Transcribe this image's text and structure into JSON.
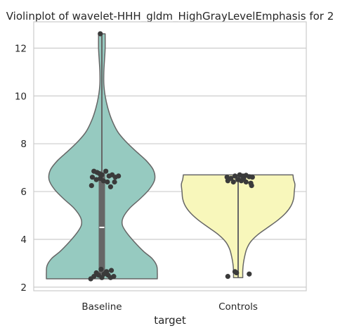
{
  "chart_data": {
    "type": "violin",
    "title": "Violinplot of wavelet-HHH_gldm_HighGrayLevelEmphasis for 2",
    "xlabel": "target",
    "ylabel": "",
    "categories": [
      "Baseline",
      "Controls"
    ],
    "ylim": [
      1.85,
      13.1
    ],
    "yticks": [
      2,
      4,
      6,
      8,
      10,
      12
    ],
    "grid": true,
    "colors": {
      "Baseline": "#96cac0",
      "Controls": "#f8f7bb",
      "points": "#3a3a3a",
      "outline": "#666666",
      "grid": "#cccccc"
    },
    "violins": [
      {
        "category": "Baseline",
        "min": 2.35,
        "max": 12.6,
        "median": 4.5,
        "q1": 2.55,
        "q3": 6.8,
        "density": [
          [
            2.35,
            0.84
          ],
          [
            2.6,
            0.84
          ],
          [
            2.9,
            0.83
          ],
          [
            3.2,
            0.76
          ],
          [
            3.5,
            0.63
          ],
          [
            3.9,
            0.49
          ],
          [
            4.3,
            0.37
          ],
          [
            4.6,
            0.31
          ],
          [
            4.9,
            0.32
          ],
          [
            5.3,
            0.42
          ],
          [
            5.7,
            0.58
          ],
          [
            6.1,
            0.72
          ],
          [
            6.5,
            0.8
          ],
          [
            6.9,
            0.78
          ],
          [
            7.3,
            0.67
          ],
          [
            7.7,
            0.51
          ],
          [
            8.1,
            0.36
          ],
          [
            8.5,
            0.24
          ],
          [
            9.0,
            0.15
          ],
          [
            9.5,
            0.09
          ],
          [
            10.0,
            0.05
          ],
          [
            10.5,
            0.03
          ],
          [
            11.0,
            0.03
          ],
          [
            11.5,
            0.04
          ],
          [
            12.0,
            0.05
          ],
          [
            12.6,
            0.05
          ]
        ],
        "points": [
          [
            -0.02,
            12.6
          ],
          [
            -0.1,
            6.85
          ],
          [
            -0.06,
            6.8
          ],
          [
            -0.03,
            6.75
          ],
          [
            0.0,
            6.7
          ],
          [
            0.05,
            6.85
          ],
          [
            0.09,
            6.65
          ],
          [
            0.13,
            6.7
          ],
          [
            0.17,
            6.6
          ],
          [
            0.21,
            6.65
          ],
          [
            -0.12,
            6.6
          ],
          [
            -0.07,
            6.5
          ],
          [
            0.02,
            6.45
          ],
          [
            0.07,
            6.4
          ],
          [
            -0.13,
            6.25
          ],
          [
            0.16,
            6.4
          ],
          [
            0.11,
            6.2
          ],
          [
            -0.02,
            6.55
          ],
          [
            -0.01,
            2.75
          ],
          [
            0.06,
            2.65
          ],
          [
            0.12,
            2.7
          ],
          [
            -0.07,
            2.6
          ],
          [
            0.03,
            2.55
          ],
          [
            0.08,
            2.5
          ],
          [
            -0.1,
            2.45
          ],
          [
            -0.04,
            2.5
          ],
          [
            0.0,
            2.4
          ],
          [
            0.15,
            2.45
          ],
          [
            -0.14,
            2.35
          ],
          [
            0.11,
            2.4
          ],
          [
            0.05,
            2.6
          ]
        ]
      },
      {
        "category": "Controls",
        "min": 2.4,
        "max": 6.7,
        "median": 6.5,
        "q1": 6.4,
        "q3": 6.65,
        "density": [
          [
            2.4,
            0.07
          ],
          [
            2.7,
            0.07
          ],
          [
            3.0,
            0.08
          ],
          [
            3.3,
            0.1
          ],
          [
            3.6,
            0.13
          ],
          [
            3.9,
            0.19
          ],
          [
            4.2,
            0.3
          ],
          [
            4.5,
            0.45
          ],
          [
            4.8,
            0.6
          ],
          [
            5.1,
            0.72
          ],
          [
            5.4,
            0.8
          ],
          [
            5.7,
            0.84
          ],
          [
            6.0,
            0.85
          ],
          [
            6.3,
            0.86
          ],
          [
            6.5,
            0.84
          ],
          [
            6.7,
            0.83
          ]
        ],
        "points": [
          [
            -0.04,
            6.65
          ],
          [
            0.02,
            6.7
          ],
          [
            0.06,
            6.65
          ],
          [
            0.1,
            6.68
          ],
          [
            0.14,
            6.62
          ],
          [
            0.18,
            6.6
          ],
          [
            -0.14,
            6.6
          ],
          [
            -0.09,
            6.55
          ],
          [
            0.0,
            6.5
          ],
          [
            0.04,
            6.45
          ],
          [
            -0.06,
            6.4
          ],
          [
            0.1,
            6.4
          ],
          [
            -0.13,
            6.45
          ],
          [
            0.16,
            6.35
          ],
          [
            0.07,
            6.55
          ],
          [
            0.17,
            6.25
          ],
          [
            -0.04,
            2.65
          ],
          [
            -0.02,
            2.6
          ],
          [
            -0.13,
            2.45
          ],
          [
            0.14,
            2.55
          ]
        ]
      }
    ]
  }
}
